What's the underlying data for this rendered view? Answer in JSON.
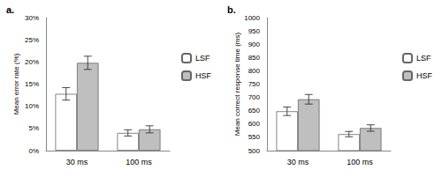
{
  "chart_data": [
    {
      "type": "bar",
      "title": "a.",
      "y_label": "Mean error rate (%)",
      "categories": [
        "30 ms",
        "100 ms"
      ],
      "series": [
        {
          "name": "LSF",
          "color": "#ffffff",
          "values": [
            12.8,
            4.0
          ],
          "errors": [
            1.4,
            0.7
          ]
        },
        {
          "name": "HSF",
          "color": "#bfbfbf",
          "values": [
            19.8,
            4.8
          ],
          "errors": [
            1.5,
            0.8
          ]
        }
      ],
      "ylim": [
        0,
        30
      ],
      "yticks": [
        {
          "value": 0,
          "label": "0%"
        },
        {
          "value": 5,
          "label": "5%"
        },
        {
          "value": 10,
          "label": "10%"
        },
        {
          "value": 15,
          "label": "15%"
        },
        {
          "value": 20,
          "label": "20%"
        },
        {
          "value": 25,
          "label": "25%"
        },
        {
          "value": 30,
          "label": "30%"
        }
      ],
      "grid": false,
      "legend": "right"
    },
    {
      "type": "bar",
      "title": "b.",
      "y_label": "Mean correct response time (ms)",
      "categories": [
        "30 ms",
        "100 ms"
      ],
      "series": [
        {
          "name": "LSF",
          "color": "#ffffff",
          "values": [
            648,
            562
          ],
          "errors": [
            16,
            10
          ]
        },
        {
          "name": "HSF",
          "color": "#bfbfbf",
          "values": [
            693,
            585
          ],
          "errors": [
            18,
            12
          ]
        }
      ],
      "ylim": [
        500,
        1000
      ],
      "yticks": [
        500,
        550,
        600,
        650,
        700,
        750,
        800,
        850,
        900,
        950,
        1000
      ],
      "grid": false,
      "legend": "right"
    }
  ]
}
